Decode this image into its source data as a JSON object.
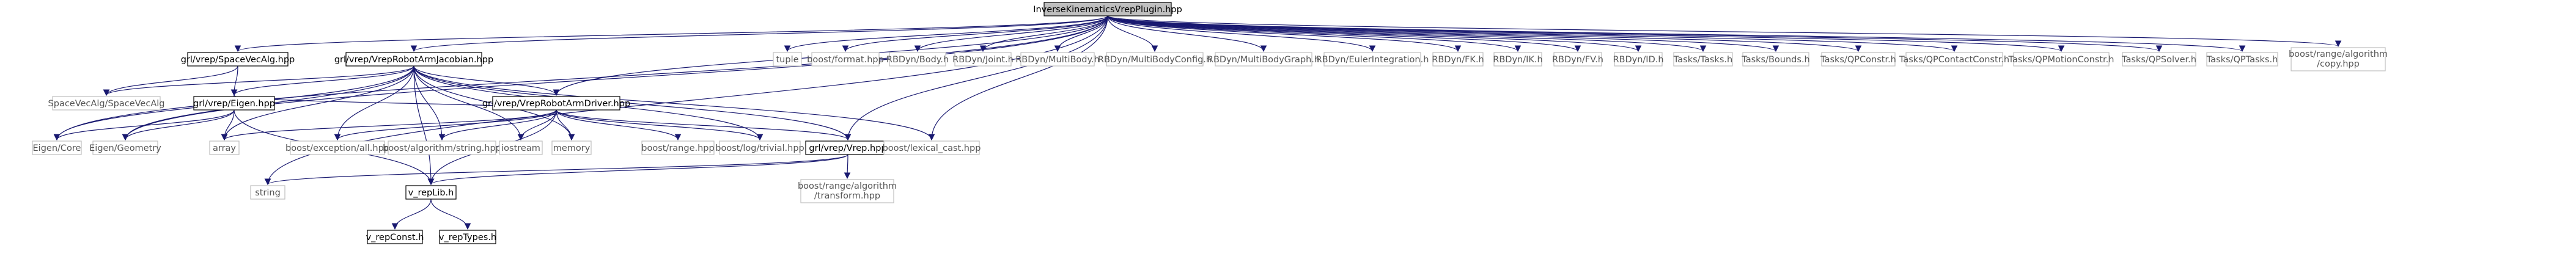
{
  "diagram": {
    "colors": {
      "root_fill": "#bfbfbf",
      "box_fill": "#ffffff",
      "box_border": "#000000",
      "leaf_border": "#bfbfbf",
      "edge": "#191970"
    },
    "nodes": {
      "root": "InverseKinematicsVrepPlugin.hpp",
      "spacevecalg_hpp": "grl/vrep/SpaceVecAlg.hpp",
      "jacobian_hpp": "grl/vrep/VrepRobotArmJacobian.hpp",
      "tuple": "tuple",
      "boost_format": "boost/format.hpp",
      "rbdyn_body": "RBDyn/Body.h",
      "rbdyn_joint": "RBDyn/Joint.h",
      "rbdyn_multibody": "RBDyn/MultiBody.h",
      "rbdyn_mbconfig": "RBDyn/MultiBodyConfig.h",
      "rbdyn_mbgraph": "RBDyn/MultiBodyGraph.h",
      "rbdyn_euler": "RBDyn/EulerIntegration.h",
      "rbdyn_fk": "RBDyn/FK.h",
      "rbdyn_ik": "RBDyn/IK.h",
      "rbdyn_fv": "RBDyn/FV.h",
      "rbdyn_id": "RBDyn/ID.h",
      "tasks_tasks": "Tasks/Tasks.h",
      "tasks_bounds": "Tasks/Bounds.h",
      "tasks_qpconstr": "Tasks/QPConstr.h",
      "tasks_qpcontact": "Tasks/QPContactConstr.h",
      "tasks_qpmotion": "Tasks/QPMotionConstr.h",
      "tasks_qpsolver": "Tasks/QPSolver.h",
      "tasks_qptasks": "Tasks/QPTasks.h",
      "boost_copy_1": "boost/range/algorithm",
      "boost_copy_2": "/copy.hpp",
      "svalib": "SpaceVecAlg/SpaceVecAlg",
      "eigen_hpp": "grl/vrep/Eigen.hpp",
      "armdriver_hpp": "grl/vrep/VrepRobotArmDriver.hpp",
      "eigen_core": "Eigen/Core",
      "eigen_geometry": "Eigen/Geometry",
      "array": "array",
      "boost_exception": "boost/exception/all.hpp",
      "boost_algo_string": "boost/algorithm/string.hpp",
      "iostream": "iostream",
      "memory": "memory",
      "boost_range": "boost/range.hpp",
      "boost_log": "boost/log/trivial.hpp",
      "vrep_hpp": "grl/vrep/Vrep.hpp",
      "boost_lexical": "boost/lexical_cast.hpp",
      "string": "string",
      "boost_transform_1": "boost/range/algorithm",
      "boost_transform_2": "/transform.hpp",
      "v_replib": "v_repLib.h",
      "v_repconst": "v_repConst.h",
      "v_reptypes": "v_repTypes.h"
    }
  }
}
